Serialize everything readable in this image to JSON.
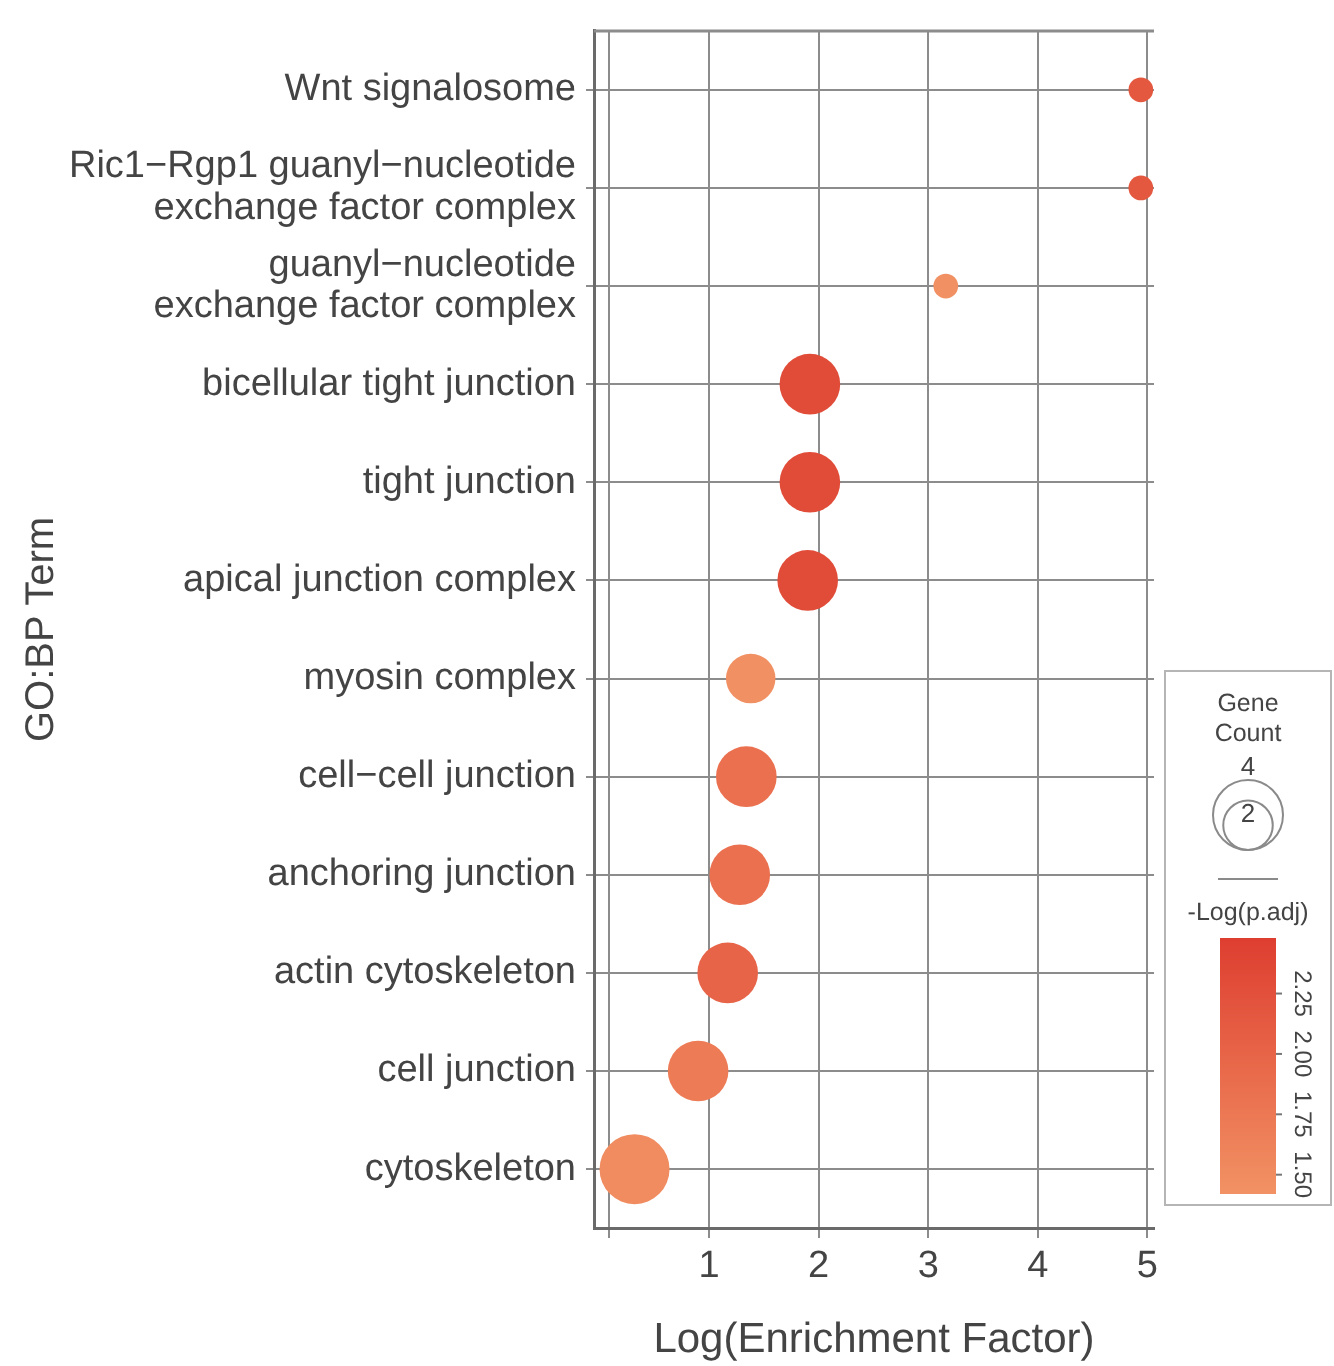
{
  "chart_data": {
    "type": "bubble",
    "orientation": "horizontal",
    "xlabel": "Log(Enrichment Factor)",
    "ylabel": "GO:BP Term",
    "categories": [
      "Wnt signalosome",
      "Ric1−Rgp1 guanyl−nucleotide exchange factor complex",
      "guanyl−nucleotide exchange factor complex",
      "bicellular tight junction",
      "tight junction",
      "apical junction complex",
      "myosin complex",
      "cell−cell junction",
      "anchoring junction",
      "actin cytoskeleton",
      "cell junction",
      "cytoskeleton"
    ],
    "values": [
      4.94,
      4.94,
      3.16,
      1.92,
      1.92,
      1.9,
      1.38,
      1.34,
      1.28,
      1.17,
      0.9,
      0.32
    ],
    "sizes": [
      0.5,
      0.5,
      0.5,
      3,
      3,
      3,
      2,
      3,
      3,
      3,
      3,
      4
    ],
    "size_legend": [
      2,
      4
    ],
    "legend_title": "Gene Count",
    "cvalues": [
      2.15,
      2.15,
      1.45,
      2.3,
      2.3,
      2.3,
      1.45,
      1.85,
      1.85,
      2.0,
      1.7,
      1.5
    ],
    "clabel": "-Log(p.adj)",
    "clim": [
      1.42,
      2.48
    ],
    "cticks": [
      {
        "value": 1.5,
        "label": "1.50"
      },
      {
        "value": 1.75,
        "label": "1.75"
      },
      {
        "value": 2,
        "label": "2.00"
      },
      {
        "value": 2.25,
        "label": "2.25"
      }
    ],
    "xlim": [
      -0.05,
      5.06
    ],
    "xticks": [
      {
        "value": 0.09,
        "label": null
      },
      1,
      2,
      3,
      4,
      5
    ],
    "grid": true,
    "marker": "circle"
  }
}
